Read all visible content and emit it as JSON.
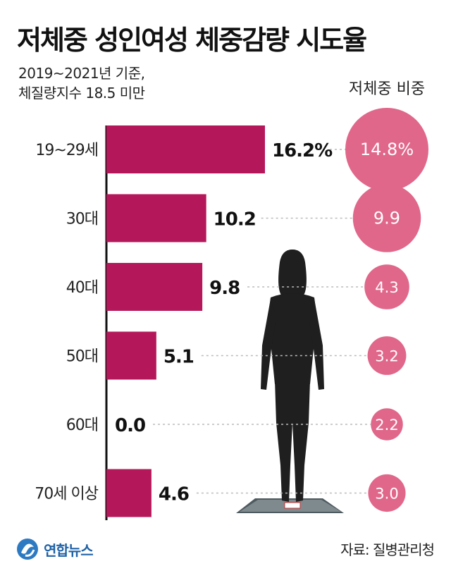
{
  "title": "저체중 성인여성 체중감량 시도율",
  "subtitle_lines": [
    "2019~2021년 기준,",
    "체질량지수 18.5 미만"
  ],
  "source": "자료: 질병관리청",
  "logo_text": "연합뉴스",
  "colors": {
    "bar": "#b5185a",
    "circle": "#e0678a",
    "circle_text": "#ffffff",
    "axis": "#111111",
    "dots": "#bbbbbb"
  },
  "chart_data": {
    "type": "bar",
    "orientation": "horizontal",
    "categories": [
      "19~29세",
      "30대",
      "40대",
      "50대",
      "60대",
      "70세 이상"
    ],
    "series": [
      {
        "name": "체중감량 시도율",
        "values": [
          16.2,
          10.2,
          9.8,
          5.1,
          0.0,
          4.6
        ],
        "value_labels": [
          "16.2%",
          "10.2",
          "9.8",
          "5.1",
          "0.0",
          "4.6"
        ]
      },
      {
        "name": "저체중 비중",
        "values": [
          14.8,
          9.9,
          4.3,
          3.2,
          2.2,
          3.0
        ],
        "value_labels": [
          "14.8%",
          "9.9",
          "4.3",
          "3.2",
          "2.2",
          "3.0"
        ]
      }
    ],
    "circle_header": "저체중 비중",
    "xlim": [
      0,
      16.2
    ]
  }
}
